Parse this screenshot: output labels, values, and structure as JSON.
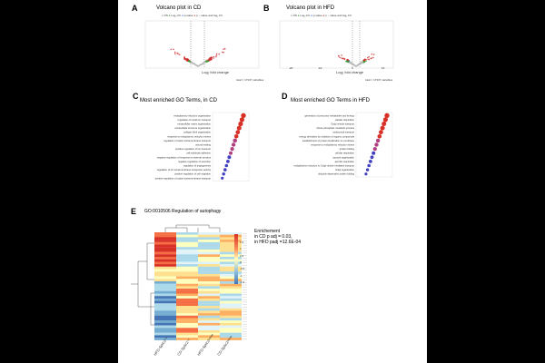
{
  "panels": {
    "A": {
      "label": "A",
      "title": "Volcano plot in CD",
      "legend": [
        "NS",
        "Log₂ FC",
        "p-value",
        "p − value and log₂ FC"
      ],
      "ylabel": "-Log₁₀ P",
      "xlabel": "Log₂ fold change",
      "footer": "total = 17337 variables",
      "genes": [
        "Bsg6-1",
        "Apoe",
        "Lpl",
        "Ccl",
        "Fabp4"
      ]
    },
    "B": {
      "label": "B",
      "title": "Volcano plot in HFD",
      "legend": [
        "NS",
        "Log₂ FC",
        "p-value",
        "p − value and log₂ FC"
      ],
      "ylabel": "-Log₁₀ P",
      "xlabel": "Log₂ fold change",
      "footer": "total = 17337 variables",
      "xticks": [
        "-20",
        "-10",
        "0",
        "10"
      ],
      "genes": [
        "Cyp1a1",
        "Mmp3",
        "Ccl2",
        "Lipg",
        "Gpnmb"
      ]
    },
    "C": {
      "label": "C",
      "title": "Most enriched GO Terms, in CD",
      "terms": [
        "endoplasmic reticulum organization",
        "regulation of metal ion transport",
        "extracellular matrix organization",
        "extracellular structure organization",
        "collagen fibril organization",
        "response to endoplasmic reticulum stress",
        "regulation of cation transmembrane transport",
        "wound healing",
        "positive regulation of ion transport",
        "cell-substrate adhesion",
        "negative regulation of response to external stimulus",
        "negative regulation of secretion",
        "regulation of angiogenesis",
        "regulation of ion transmembrane transporter activity",
        "positive regulation of cell migration",
        "positive regulation of cation transmembrane transport"
      ],
      "xlabel": "Gene Ratio",
      "legend_title": "Adjusted p value",
      "count_title": "Gene Count"
    },
    "D": {
      "label": "D",
      "title": "Most enriched GO Terms in HFD",
      "terms": [
        "generation of precursor metabolites and energy",
        "cellular respiration",
        "Golgi vesicle transport",
        "ribose phosphate metabolic process",
        "endosomal transport",
        "energy derivation by oxidation of organic compounds",
        "establishment of protein localization to membrane",
        "response to endoplasmic reticulum stress",
        "protein folding",
        "cellular respiration",
        "vacuole organization",
        "aerobic respiration",
        "endoplasmic reticulum to Golgi vesicle-mediated transport",
        "Golgi organization",
        "ubiquitin-dependent protein folding"
      ],
      "xlabel": "Gene Ratio",
      "legend_title": "Adjusted p value",
      "count_title": "Gene Count"
    },
    "E": {
      "label": "E",
      "title": "GO:0010506   Regulation of autophagy",
      "note_line1": "Enrichement",
      "note_line2": "in CD p adj = 0.03,",
      "note_line3": "in HFD padj =12.6E-04",
      "columns": [
        "HFD-Sptlc2⁺ᵏ",
        "CD-Sptlc2⁺ᵏ",
        "HFD-Sptlc2ᵃᵈᵖᵠᵖ",
        "CD-Sptlc2ᵃᵈᵖᵠᵖ"
      ],
      "scale": [
        "1.5",
        "1",
        "0.5",
        "0",
        "-0.5",
        "-1",
        "-1.5"
      ]
    }
  },
  "colors": {
    "red": "#d73027",
    "orange": "#fc8d59",
    "yellow": "#fee090",
    "pale": "#ffffbf",
    "lightblue": "#e0f3f8",
    "blue": "#4575b4",
    "purple": "#3f3fbf"
  }
}
